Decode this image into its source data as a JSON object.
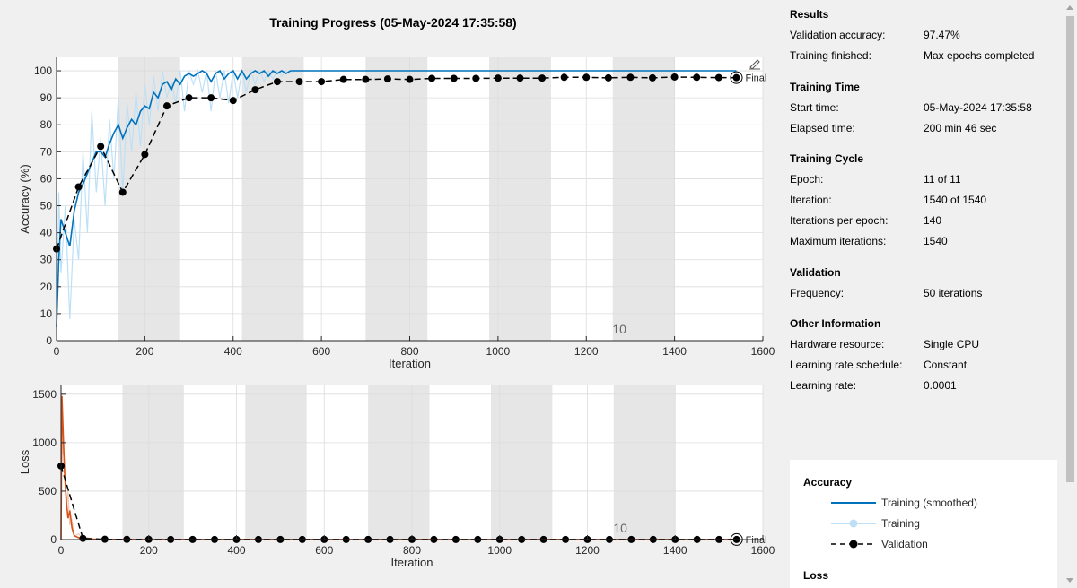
{
  "title": "Training Progress (05-May-2024 17:35:58)",
  "colors": {
    "training_smoothed_acc": "#0072bd",
    "training_raw_acc": "#bde0f7",
    "training_smoothed_loss": "#d95319",
    "training_raw_loss": "#f5c7b3",
    "validation": "#000000",
    "epoch_band": "#e6e6e6"
  },
  "chart_data": [
    {
      "type": "line",
      "name": "accuracy-plot",
      "ylabel": "Accuracy (%)",
      "xlabel": "Iteration",
      "xlim": [
        0,
        1600
      ],
      "ylim": [
        0,
        105
      ],
      "xticks": [
        0,
        200,
        400,
        600,
        800,
        1000,
        1200,
        1400,
        1600
      ],
      "yticks": [
        0,
        10,
        20,
        30,
        40,
        50,
        60,
        70,
        80,
        90,
        100
      ],
      "epoch_shading": [
        [
          140,
          280
        ],
        [
          420,
          560
        ],
        [
          700,
          840
        ],
        [
          980,
          1120
        ],
        [
          1260,
          1400
        ]
      ],
      "epoch_annotation": {
        "text": "10",
        "x": 1275
      },
      "final_label": "Final",
      "series": [
        {
          "name": "Training (smoothed)",
          "x": [
            0,
            5,
            10,
            20,
            30,
            40,
            50,
            60,
            70,
            80,
            90,
            100,
            110,
            120,
            130,
            140,
            150,
            160,
            170,
            180,
            190,
            200,
            210,
            220,
            230,
            240,
            250,
            260,
            270,
            280,
            290,
            300,
            310,
            320,
            330,
            340,
            350,
            360,
            370,
            380,
            390,
            400,
            410,
            420,
            430,
            440,
            450,
            460,
            470,
            480,
            490,
            500,
            510,
            520,
            530,
            540,
            550,
            560,
            600,
            700,
            800,
            900,
            1000,
            1100,
            1200,
            1300,
            1400,
            1500,
            1540
          ],
          "y": [
            5,
            30,
            45,
            40,
            35,
            48,
            55,
            58,
            62,
            66,
            70,
            70,
            68,
            73,
            77,
            80,
            75,
            79,
            82,
            80,
            85,
            87,
            86,
            92,
            90,
            95,
            96,
            93,
            97,
            95,
            98,
            99,
            98,
            99,
            100,
            99,
            96,
            99,
            100,
            97,
            99,
            100,
            97,
            100,
            97,
            99,
            100,
            99,
            100,
            98,
            100,
            99,
            100,
            99,
            100,
            100,
            100,
            100,
            100,
            100,
            100,
            100,
            100,
            100,
            100,
            100,
            100,
            100,
            100
          ]
        },
        {
          "name": "Training",
          "x": [
            0,
            5,
            10,
            20,
            30,
            40,
            50,
            60,
            70,
            80,
            90,
            100,
            110,
            120,
            130,
            140,
            150,
            160,
            170,
            180,
            190,
            200,
            210,
            220,
            230,
            240,
            250,
            260,
            270,
            280,
            290,
            300,
            310,
            320,
            330,
            340,
            350,
            360,
            370,
            380,
            390,
            400,
            410,
            420,
            430,
            440,
            450,
            460,
            470,
            480,
            490,
            500,
            510,
            520,
            530,
            540,
            550,
            560
          ],
          "y": [
            3,
            55,
            25,
            50,
            8,
            45,
            30,
            70,
            40,
            85,
            55,
            75,
            50,
            82,
            60,
            90,
            55,
            88,
            70,
            92,
            72,
            95,
            80,
            98,
            85,
            100,
            90,
            96,
            88,
            100,
            85,
            100,
            95,
            100,
            92,
            100,
            85,
            100,
            90,
            100,
            88,
            100,
            90,
            100,
            92,
            100,
            95,
            100,
            96,
            100,
            97,
            100,
            98,
            100,
            99,
            100,
            100,
            100
          ]
        },
        {
          "name": "Validation",
          "x": [
            0,
            50,
            100,
            150,
            200,
            250,
            300,
            350,
            400,
            450,
            500,
            550,
            600,
            650,
            700,
            750,
            800,
            850,
            900,
            950,
            1000,
            1050,
            1100,
            1150,
            1200,
            1250,
            1300,
            1350,
            1400,
            1450,
            1500,
            1540
          ],
          "y": [
            34,
            57,
            72,
            55,
            69,
            87,
            90,
            90,
            89,
            93,
            96,
            96,
            96,
            96.8,
            96.8,
            97,
            96.8,
            97.2,
            97.2,
            97.2,
            97.3,
            97.3,
            97.3,
            97.6,
            97.6,
            97.4,
            97.6,
            97.4,
            97.7,
            97.6,
            97.5,
            97.47
          ]
        }
      ]
    },
    {
      "type": "line",
      "name": "loss-plot",
      "ylabel": "Loss",
      "xlabel": "Iteration",
      "xlim": [
        0,
        1600
      ],
      "ylim": [
        0,
        1600
      ],
      "xticks": [
        0,
        200,
        400,
        600,
        800,
        1000,
        1200,
        1400,
        1600
      ],
      "yticks": [
        0,
        500,
        1000,
        1500
      ],
      "epoch_shading": [
        [
          140,
          280
        ],
        [
          420,
          560
        ],
        [
          700,
          840
        ],
        [
          980,
          1120
        ],
        [
          1260,
          1400
        ]
      ],
      "epoch_annotation": {
        "text": "10",
        "x": 1275
      },
      "final_label": "Final",
      "series": [
        {
          "name": "Training (smoothed)",
          "x": [
            0,
            2,
            5,
            8,
            12,
            16,
            20,
            25,
            30,
            40,
            50,
            60,
            80,
            100,
            200,
            400,
            600,
            800,
            1000,
            1200,
            1400,
            1540
          ],
          "y": [
            0,
            1480,
            1100,
            700,
            400,
            220,
            300,
            120,
            40,
            20,
            10,
            5,
            3,
            2,
            1,
            1,
            1,
            1,
            1,
            1,
            1,
            1
          ]
        },
        {
          "name": "Training",
          "x": [
            0,
            2,
            5,
            8,
            12,
            16,
            20,
            25,
            30,
            40,
            50,
            60,
            80,
            100,
            200,
            400,
            600,
            800,
            1000,
            1200,
            1400,
            1540
          ],
          "y": [
            0,
            1500,
            900,
            800,
            300,
            500,
            150,
            200,
            30,
            60,
            5,
            20,
            2,
            5,
            1,
            1,
            1,
            1,
            1,
            1,
            1,
            1
          ]
        },
        {
          "name": "Validation",
          "x": [
            0,
            50,
            100,
            150,
            200,
            250,
            300,
            350,
            400,
            450,
            500,
            550,
            600,
            650,
            700,
            750,
            800,
            850,
            900,
            950,
            1000,
            1050,
            1100,
            1150,
            1200,
            1250,
            1300,
            1350,
            1400,
            1450,
            1500,
            1540
          ],
          "y": [
            760,
            12,
            3,
            2,
            2,
            1,
            1,
            1,
            1,
            1,
            1,
            1,
            1,
            1,
            1,
            1,
            1,
            1,
            1,
            1,
            1,
            1,
            1,
            1,
            1,
            1,
            1,
            1,
            1,
            1,
            1,
            1
          ]
        }
      ]
    }
  ],
  "info": {
    "results": {
      "title": "Results",
      "rows": [
        {
          "label": "Validation accuracy:",
          "value": "97.47%"
        },
        {
          "label": "Training finished:",
          "value": "Max epochs completed"
        }
      ]
    },
    "training_time": {
      "title": "Training Time",
      "rows": [
        {
          "label": "Start time:",
          "value": "05-May-2024 17:35:58"
        },
        {
          "label": "Elapsed time:",
          "value": "200 min 46 sec"
        }
      ]
    },
    "training_cycle": {
      "title": "Training Cycle",
      "rows": [
        {
          "label": "Epoch:",
          "value": "11 of 11"
        },
        {
          "label": "Iteration:",
          "value": "1540 of 1540"
        },
        {
          "label": "Iterations per epoch:",
          "value": "140"
        },
        {
          "label": "Maximum iterations:",
          "value": "1540"
        }
      ]
    },
    "validation": {
      "title": "Validation",
      "rows": [
        {
          "label": "Frequency:",
          "value": "50 iterations"
        }
      ]
    },
    "other": {
      "title": "Other Information",
      "rows": [
        {
          "label": "Hardware resource:",
          "value": "Single CPU"
        },
        {
          "label": "Learning rate schedule:",
          "value": "Constant"
        },
        {
          "label": "Learning rate:",
          "value": "0.0001"
        }
      ]
    }
  },
  "legend": {
    "accuracy_title": "Accuracy",
    "loss_title": "Loss",
    "items": [
      {
        "label": "Training (smoothed)",
        "icon": "line-icon"
      },
      {
        "label": "Training",
        "icon": "line-marker-icon"
      },
      {
        "label": "Validation",
        "icon": "dashed-line-marker-icon"
      }
    ]
  }
}
